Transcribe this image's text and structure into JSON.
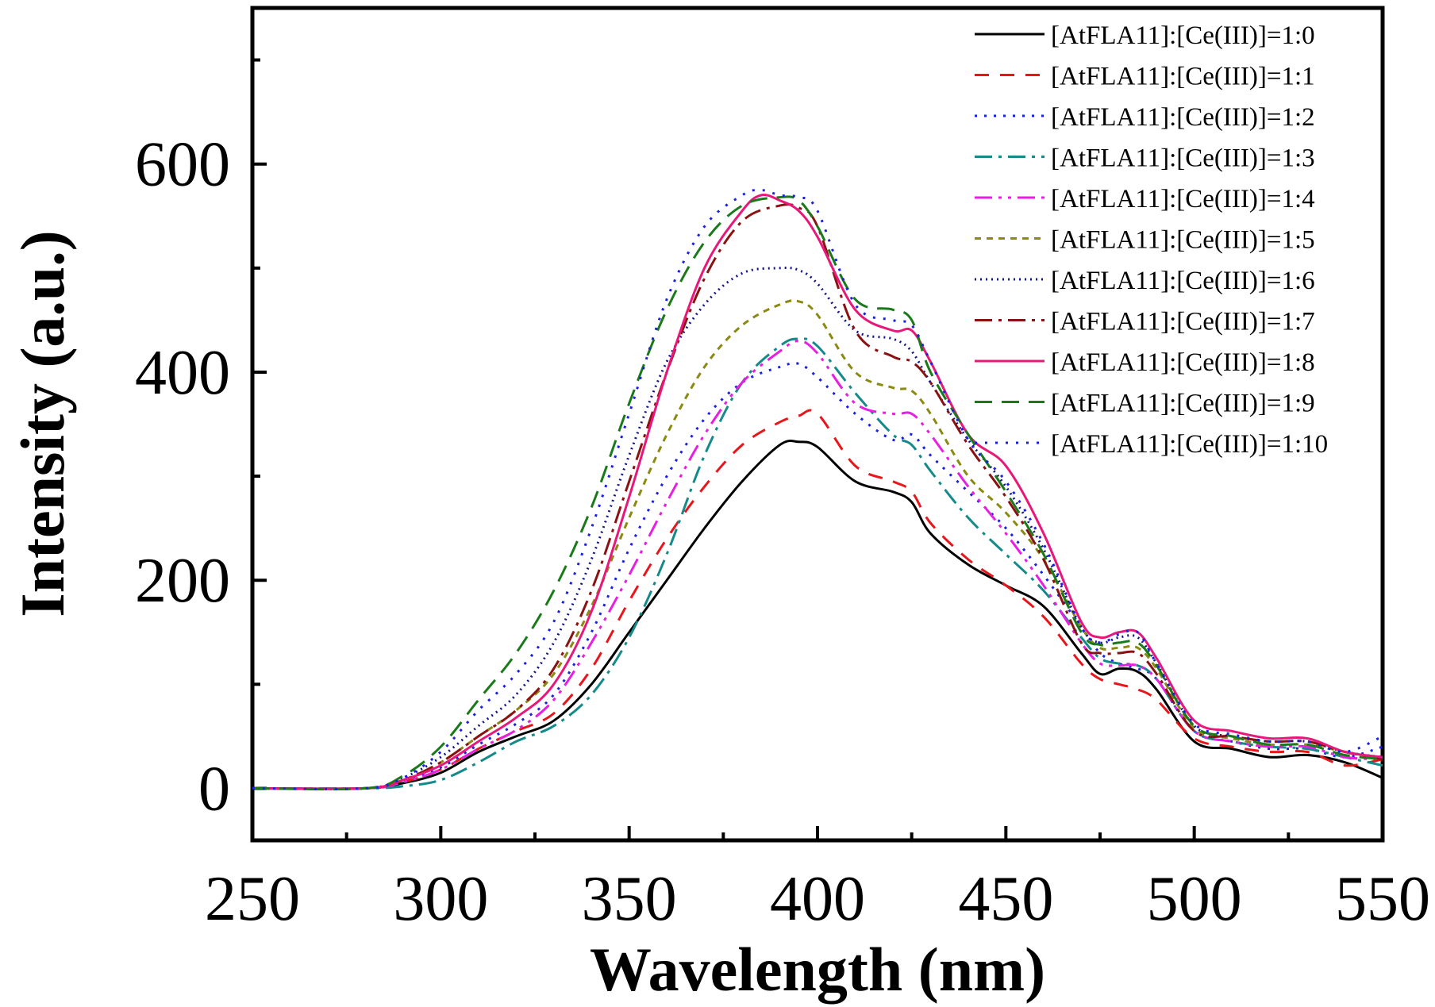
{
  "chart_data": {
    "type": "line",
    "title": "",
    "xlabel": "Wavelength (nm)",
    "ylabel": "Intensity (a.u.)",
    "xlim": [
      250,
      550
    ],
    "ylim": [
      -50,
      750
    ],
    "xticks": [
      250,
      300,
      350,
      400,
      450,
      500,
      550
    ],
    "yticks": [
      0,
      200,
      400,
      600
    ],
    "grid": false,
    "legend_position": "top-right",
    "series": [
      {
        "name": "[AtFLA11]:[Ce(III)]=1:0",
        "color": "#000000",
        "dash": "solid",
        "x": [
          250,
          280,
          290,
          300,
          310,
          320,
          330,
          340,
          350,
          360,
          370,
          380,
          390,
          395,
          400,
          410,
          420,
          425,
          430,
          440,
          450,
          460,
          470,
          475,
          480,
          485,
          490,
          500,
          510,
          520,
          530,
          540,
          550
        ],
        "y": [
          0,
          0,
          5,
          15,
          35,
          50,
          65,
          100,
          150,
          200,
          250,
          295,
          330,
          333,
          328,
          295,
          285,
          275,
          245,
          215,
          195,
          175,
          130,
          110,
          115,
          112,
          95,
          45,
          38,
          30,
          32,
          25,
          10
        ]
      },
      {
        "name": "[AtFLA11]:[Ce(III)]=1:1",
        "color": "#e8161b",
        "dash": "18,14",
        "x": [
          250,
          280,
          290,
          300,
          310,
          320,
          330,
          340,
          350,
          360,
          370,
          380,
          390,
          395,
          400,
          410,
          420,
          425,
          430,
          440,
          450,
          460,
          470,
          475,
          480,
          485,
          490,
          500,
          510,
          520,
          530,
          540,
          550
        ],
        "y": [
          0,
          0,
          6,
          18,
          38,
          55,
          72,
          115,
          180,
          240,
          290,
          330,
          352,
          358,
          360,
          310,
          295,
          285,
          255,
          220,
          195,
          165,
          120,
          105,
          100,
          95,
          85,
          48,
          40,
          35,
          35,
          22,
          28
        ]
      },
      {
        "name": "[AtFLA11]:[Ce(III)]=1:2",
        "color": "#1a1fe6",
        "dash": "3,9",
        "x": [
          250,
          280,
          290,
          300,
          310,
          320,
          330,
          340,
          350,
          360,
          370,
          380,
          390,
          395,
          400,
          410,
          420,
          425,
          430,
          440,
          450,
          460,
          470,
          475,
          480,
          485,
          490,
          500,
          510,
          520,
          530,
          540,
          550
        ],
        "y": [
          0,
          0,
          7,
          20,
          42,
          62,
          90,
          150,
          230,
          300,
          355,
          390,
          405,
          408,
          395,
          360,
          335,
          340,
          320,
          285,
          250,
          205,
          155,
          130,
          120,
          115,
          105,
          55,
          45,
          38,
          38,
          30,
          40
        ]
      },
      {
        "name": "[AtFLA11]:[Ce(III)]=1:3",
        "color": "#158a8a",
        "dash": "22,8,4,8",
        "x": [
          250,
          280,
          290,
          300,
          310,
          320,
          330,
          340,
          350,
          360,
          370,
          380,
          390,
          395,
          400,
          410,
          420,
          425,
          430,
          440,
          450,
          460,
          470,
          475,
          480,
          485,
          490,
          500,
          510,
          520,
          530,
          540,
          550
        ],
        "y": [
          0,
          0,
          2,
          8,
          25,
          45,
          60,
          90,
          145,
          225,
          320,
          390,
          425,
          432,
          425,
          380,
          340,
          330,
          305,
          260,
          225,
          190,
          145,
          125,
          120,
          118,
          105,
          55,
          45,
          40,
          38,
          30,
          22
        ]
      },
      {
        "name": "[AtFLA11]:[Ce(III)]=1:4",
        "color": "#e81ee0",
        "dash": "22,8,4,8,4,8",
        "x": [
          250,
          280,
          290,
          300,
          310,
          320,
          330,
          340,
          350,
          360,
          370,
          380,
          390,
          395,
          400,
          410,
          420,
          425,
          430,
          440,
          450,
          460,
          470,
          475,
          480,
          485,
          490,
          500,
          510,
          520,
          530,
          540,
          550
        ],
        "y": [
          0,
          0,
          6,
          18,
          38,
          56,
          85,
          140,
          205,
          275,
          340,
          390,
          420,
          430,
          418,
          370,
          360,
          360,
          340,
          290,
          245,
          195,
          140,
          120,
          118,
          118,
          105,
          55,
          45,
          40,
          40,
          30,
          28
        ]
      },
      {
        "name": "[AtFLA11]:[Ce(III)]=1:5",
        "color": "#8a8a12",
        "dash": "8,7",
        "x": [
          250,
          280,
          290,
          300,
          310,
          320,
          330,
          340,
          350,
          360,
          370,
          380,
          390,
          395,
          400,
          410,
          420,
          425,
          430,
          440,
          450,
          460,
          470,
          475,
          480,
          485,
          490,
          500,
          510,
          520,
          530,
          540,
          550
        ],
        "y": [
          0,
          0,
          8,
          25,
          50,
          75,
          110,
          175,
          260,
          340,
          405,
          445,
          465,
          468,
          455,
          400,
          385,
          382,
          360,
          300,
          265,
          220,
          155,
          135,
          135,
          135,
          115,
          58,
          48,
          42,
          42,
          35,
          28
        ]
      },
      {
        "name": "[AtFLA11]:[Ce(III)]=1:6",
        "color": "#14148a",
        "dash": "2,5",
        "x": [
          250,
          280,
          290,
          300,
          310,
          320,
          330,
          340,
          350,
          360,
          370,
          380,
          390,
          395,
          400,
          410,
          420,
          425,
          430,
          440,
          450,
          460,
          470,
          475,
          480,
          485,
          490,
          500,
          510,
          520,
          530,
          540,
          550
        ],
        "y": [
          0,
          0,
          10,
          30,
          60,
          90,
          140,
          220,
          320,
          410,
          465,
          495,
          500,
          498,
          485,
          440,
          432,
          420,
          390,
          335,
          290,
          230,
          155,
          140,
          145,
          145,
          120,
          60,
          50,
          45,
          45,
          35,
          30
        ]
      },
      {
        "name": "[AtFLA11]:[Ce(III)]=1:7",
        "color": "#8a1212",
        "dash": "22,8,4,8",
        "x": [
          250,
          280,
          290,
          300,
          310,
          320,
          330,
          340,
          350,
          360,
          370,
          380,
          390,
          395,
          400,
          410,
          420,
          425,
          430,
          440,
          450,
          460,
          470,
          475,
          480,
          485,
          490,
          500,
          510,
          520,
          530,
          540,
          550
        ],
        "y": [
          0,
          0,
          8,
          25,
          50,
          75,
          115,
          190,
          295,
          400,
          490,
          545,
          560,
          558,
          540,
          440,
          415,
          410,
          390,
          330,
          280,
          220,
          140,
          130,
          130,
          130,
          110,
          55,
          50,
          45,
          45,
          35,
          28
        ]
      },
      {
        "name": "[AtFLA11]:[Ce(III)]=1:8",
        "color": "#e8187a",
        "dash": "solid",
        "x": [
          250,
          280,
          290,
          300,
          310,
          320,
          330,
          340,
          350,
          360,
          370,
          380,
          385,
          390,
          395,
          400,
          410,
          420,
          425,
          430,
          440,
          450,
          460,
          470,
          475,
          480,
          485,
          490,
          500,
          510,
          520,
          530,
          540,
          550
        ],
        "y": [
          0,
          0,
          8,
          22,
          45,
          68,
          100,
          170,
          280,
          400,
          500,
          555,
          570,
          565,
          555,
          530,
          460,
          440,
          440,
          410,
          340,
          310,
          245,
          160,
          145,
          150,
          150,
          125,
          65,
          55,
          48,
          48,
          35,
          30
        ]
      },
      {
        "name": "[AtFLA11]:[Ce(III)]=1:9",
        "color": "#1a7a1a",
        "dash": "22,12",
        "x": [
          250,
          280,
          290,
          300,
          310,
          320,
          330,
          340,
          350,
          360,
          370,
          380,
          390,
          395,
          400,
          410,
          420,
          425,
          430,
          440,
          450,
          460,
          470,
          475,
          480,
          485,
          490,
          500,
          510,
          520,
          530,
          540,
          550
        ],
        "y": [
          0,
          0,
          12,
          40,
          85,
          130,
          190,
          270,
          370,
          460,
          525,
          560,
          568,
          565,
          540,
          470,
          460,
          450,
          400,
          340,
          285,
          225,
          150,
          138,
          140,
          140,
          118,
          60,
          50,
          42,
          42,
          32,
          28
        ]
      },
      {
        "name": "[AtFLA11]:[Ce(III)]=1:10",
        "color": "#1a1fe6",
        "dash": "3,10",
        "x": [
          250,
          280,
          290,
          300,
          310,
          320,
          330,
          340,
          350,
          360,
          370,
          380,
          385,
          390,
          395,
          400,
          410,
          420,
          425,
          430,
          440,
          450,
          460,
          470,
          475,
          480,
          485,
          490,
          500,
          510,
          520,
          530,
          540,
          550
        ],
        "y": [
          0,
          0,
          10,
          35,
          75,
          110,
          160,
          250,
          360,
          470,
          540,
          570,
          575,
          570,
          568,
          555,
          465,
          450,
          445,
          410,
          335,
          295,
          235,
          155,
          140,
          148,
          150,
          120,
          62,
          52,
          45,
          45,
          35,
          50
        ]
      }
    ]
  }
}
